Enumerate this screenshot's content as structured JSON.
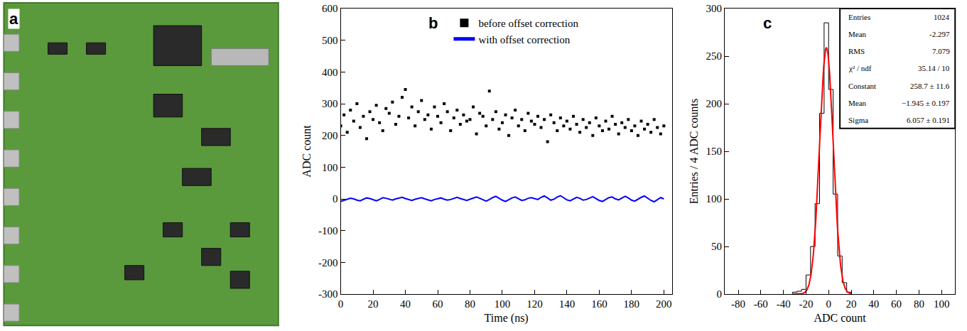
{
  "chart_data": [
    {
      "type": "image",
      "panel": "a"
    },
    {
      "type": "scatter",
      "panel": "b",
      "x_label": "Time (ns)",
      "y_label": "ADC count",
      "x": [
        0,
        2,
        4,
        6,
        8,
        10,
        12,
        14,
        16,
        18,
        20,
        22,
        24,
        26,
        28,
        30,
        32,
        34,
        36,
        38,
        40,
        42,
        44,
        46,
        48,
        50,
        52,
        54,
        56,
        58,
        60,
        62,
        64,
        66,
        68,
        70,
        72,
        74,
        76,
        78,
        80,
        82,
        84,
        86,
        88,
        90,
        92,
        94,
        96,
        98,
        100,
        102,
        104,
        106,
        108,
        110,
        112,
        114,
        116,
        118,
        120,
        122,
        124,
        126,
        128,
        130,
        132,
        134,
        136,
        138,
        140,
        142,
        144,
        146,
        148,
        150,
        152,
        154,
        156,
        158,
        160,
        162,
        164,
        166,
        168,
        170,
        172,
        174,
        176,
        178,
        180,
        182,
        184,
        186,
        188,
        190,
        192,
        194,
        196,
        198,
        200
      ],
      "series": [
        {
          "name": "before offset correction",
          "type": "scatter",
          "color": "#000000",
          "marker": "square",
          "values": [
            230,
            265,
            210,
            280,
            245,
            300,
            225,
            260,
            190,
            275,
            250,
            295,
            240,
            215,
            285,
            270,
            305,
            235,
            260,
            320,
            345,
            255,
            290,
            230,
            275,
            310,
            250,
            265,
            220,
            290,
            260,
            240,
            300,
            275,
            215,
            255,
            280,
            235,
            265,
            245,
            250,
            290,
            205,
            270,
            260,
            230,
            340,
            250,
            275,
            220,
            240,
            265,
            200,
            255,
            280,
            230,
            250,
            215,
            270,
            245,
            235,
            260,
            225,
            250,
            180,
            265,
            240,
            215,
            255,
            230,
            245,
            220,
            260,
            235,
            210,
            250,
            225,
            240,
            200,
            255,
            230,
            215,
            245,
            220,
            260,
            235,
            205,
            240,
            225,
            250,
            215,
            230,
            200,
            245,
            220,
            235,
            210,
            250,
            225,
            205,
            230
          ]
        },
        {
          "name": "with offset correction",
          "type": "line",
          "color": "#0000ff",
          "line_style": "solid",
          "values": [
            -8,
            -5,
            -2,
            2,
            0,
            -4,
            -6,
            -1,
            3,
            1,
            -3,
            -6,
            -2,
            4,
            2,
            -1,
            -4,
            0,
            3,
            5,
            1,
            -2,
            -5,
            -1,
            2,
            4,
            0,
            -3,
            -6,
            -2,
            1,
            3,
            -1,
            -4,
            -2,
            2,
            5,
            1,
            -2,
            -5,
            -1,
            3,
            6,
            2,
            -3,
            -7,
            -2,
            4,
            8,
            1,
            -4,
            -8,
            -2,
            3,
            6,
            0,
            -5,
            -3,
            2,
            4,
            1,
            -2,
            5,
            9,
            3,
            -4,
            -1,
            6,
            10,
            4,
            -3,
            -6,
            0,
            5,
            2,
            -4,
            -2,
            3,
            7,
            1,
            -5,
            -8,
            -2,
            4,
            6,
            0,
            -3,
            2,
            8,
            3,
            -4,
            -7,
            -1,
            5,
            9,
            2,
            -5,
            -9,
            -2,
            4,
            0
          ]
        }
      ],
      "xlim": [
        0,
        205
      ],
      "ylim": [
        -300,
        600
      ],
      "xticks": [
        0,
        20,
        40,
        60,
        80,
        100,
        120,
        140,
        160,
        180,
        200
      ],
      "yticks": [
        -300,
        -200,
        -100,
        0,
        100,
        200,
        300,
        400,
        500,
        600
      ],
      "legend": "top",
      "grid": false
    },
    {
      "type": "histogram",
      "panel": "c",
      "x_label": "ADC count",
      "y_label": "Entries / 4 ADC counts",
      "bins": [
        -32,
        -28,
        -24,
        -20,
        -16,
        -12,
        -8,
        -4,
        0,
        4,
        8,
        12,
        16,
        20
      ],
      "values": [
        2,
        3,
        5,
        20,
        50,
        95,
        190,
        285,
        215,
        105,
        40,
        12,
        2
      ],
      "color": "#000000",
      "fit": {
        "constant": 258.7,
        "mean": -1.945,
        "sigma": 6.057,
        "color": "#ff0000"
      },
      "stats": [
        {
          "label": "Entries",
          "value": "1024"
        },
        {
          "label": "Mean",
          "value": "-2.297"
        },
        {
          "label": "RMS",
          "value": "7.079"
        },
        {
          "label": "χ² / ndf",
          "value": "35.14 / 10"
        },
        {
          "label": "Constant",
          "value": "258.7 ± 11.6"
        },
        {
          "label": "Mean",
          "value": "−1.945 ± 0.197"
        },
        {
          "label": "Sigma",
          "value": "6.057 ± 0.191"
        }
      ],
      "xlim": [
        -92,
        112
      ],
      "ylim": [
        0,
        300
      ],
      "xticks": [
        -80,
        -60,
        -40,
        -20,
        0,
        20,
        40,
        60,
        80,
        100
      ],
      "yticks": [
        0,
        50,
        100,
        150,
        200,
        250,
        300
      ],
      "grid": false
    }
  ]
}
